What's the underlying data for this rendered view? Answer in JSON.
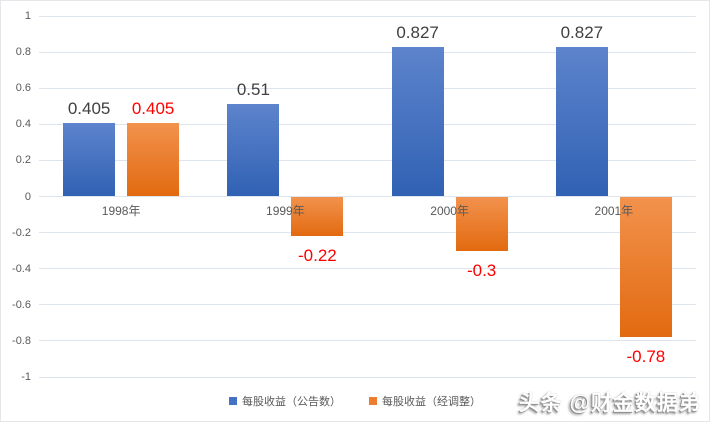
{
  "chart_data": {
    "type": "bar",
    "categories": [
      "1998年",
      "1999年",
      "2000年",
      "2001年"
    ],
    "series": [
      {
        "name": "每股收益（公告数）",
        "color": "#4472C4",
        "gradient": [
          "#5d84cc",
          "#3161b4"
        ],
        "values": [
          0.405,
          0.51,
          0.827,
          0.827
        ],
        "labels": [
          "0.405",
          "0.51",
          "0.827",
          "0.827"
        ],
        "label_color": "#404040"
      },
      {
        "name": "每股收益（经调整）",
        "color": "#ED7D31",
        "gradient": [
          "#f2924d",
          "#e26a10"
        ],
        "values": [
          0.405,
          -0.22,
          -0.3,
          -0.78
        ],
        "labels": [
          "0.405",
          "-0.22",
          "-0.3",
          "-0.78"
        ],
        "label_color": "#ff0000"
      }
    ],
    "title": "",
    "xlabel": "",
    "ylabel": "",
    "ylim": [
      -1,
      1
    ],
    "y_ticks": [
      "1",
      "0.8",
      "0.6",
      "0.4",
      "0.2",
      "0",
      "-0.2",
      "-0.4",
      "-0.6",
      "-0.8",
      "-1"
    ],
    "grid": true,
    "legend_position": "bottom"
  },
  "legend": {
    "items": [
      "每股收益（公告数）",
      "每股收益（经调整）"
    ]
  },
  "watermark": {
    "text": "头条 @财金数据弟"
  },
  "colors": {
    "gridline": "#dde4ee",
    "axis_text": "#595959",
    "positive_label": "#404040",
    "adjusted_label": "#ff0000"
  }
}
